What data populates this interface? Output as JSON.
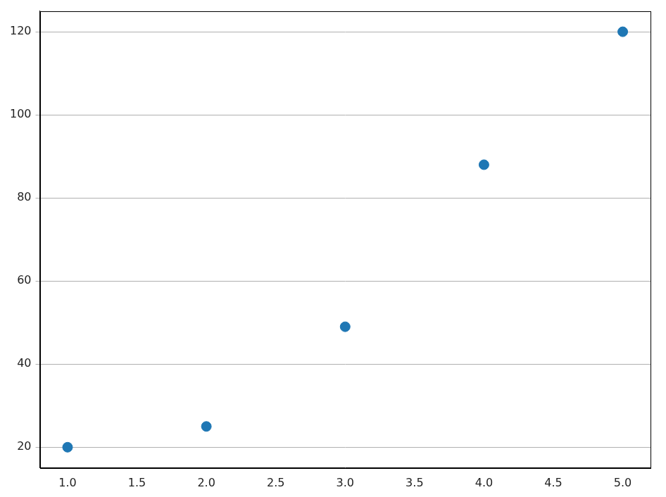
{
  "chart_data": {
    "type": "scatter",
    "x": [
      1,
      2,
      3,
      4,
      5
    ],
    "values": [
      20,
      25,
      49,
      88,
      120
    ],
    "color": "#1f77b4",
    "marker": "circle",
    "xlim": [
      0.8,
      5.2
    ],
    "xticks": [
      {
        "value": 1,
        "label": "1.0"
      },
      1.5,
      {
        "value": 2,
        "label": "2.0"
      },
      2.5,
      {
        "value": 3,
        "label": "3.0"
      },
      3.5,
      {
        "value": 4,
        "label": "4.0"
      },
      4.5,
      {
        "value": 5,
        "label": "5.0"
      }
    ],
    "ylim": [
      15,
      125
    ],
    "yticks": [
      20,
      40,
      60,
      80,
      100,
      120
    ],
    "grid": "y"
  }
}
